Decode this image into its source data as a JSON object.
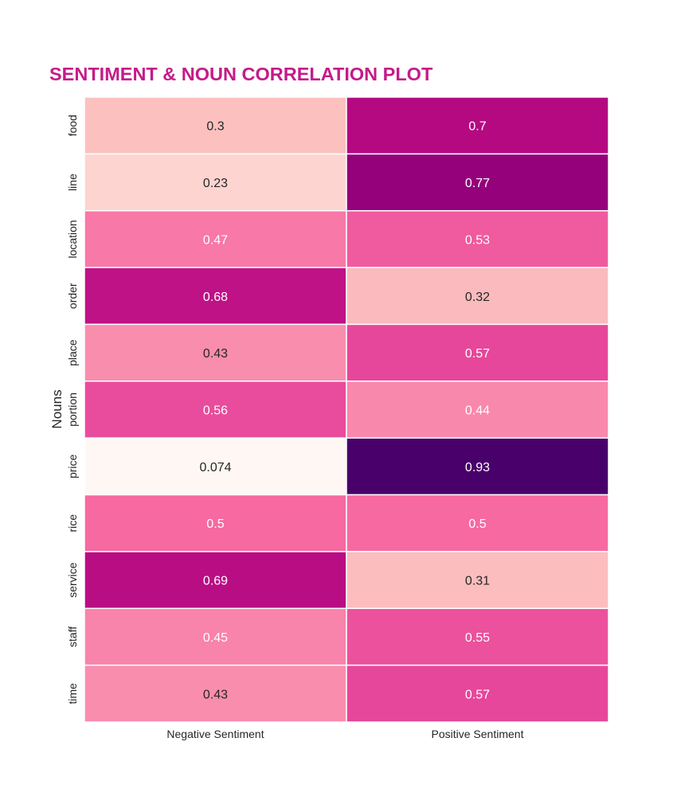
{
  "chart_data": {
    "type": "heatmap",
    "title": "SENTIMENT & NOUN CORRELATION PLOT",
    "title_color": "#c51b8a",
    "xlabel": "",
    "ylabel": "Nouns",
    "colormap": "RdPu",
    "colorbar": false,
    "x_categories": [
      "Negative Sentiment",
      "Positive Sentiment"
    ],
    "y_categories": [
      "food",
      "line",
      "location",
      "order",
      "place",
      "portion",
      "price",
      "rice",
      "service",
      "staff",
      "time"
    ],
    "values": [
      [
        0.3,
        0.7
      ],
      [
        0.23,
        0.77
      ],
      [
        0.47,
        0.53
      ],
      [
        0.68,
        0.32
      ],
      [
        0.43,
        0.57
      ],
      [
        0.56,
        0.44
      ],
      [
        0.074,
        0.93
      ],
      [
        0.5,
        0.5
      ],
      [
        0.69,
        0.31
      ],
      [
        0.45,
        0.55
      ],
      [
        0.43,
        0.57
      ]
    ],
    "value_labels": [
      [
        "0.3",
        "0.7"
      ],
      [
        "0.23",
        "0.77"
      ],
      [
        "0.47",
        "0.53"
      ],
      [
        "0.68",
        "0.32"
      ],
      [
        "0.43",
        "0.57"
      ],
      [
        "0.56",
        "0.44"
      ],
      [
        "0.074",
        "0.93"
      ],
      [
        "0.5",
        "0.5"
      ],
      [
        "0.69",
        "0.31"
      ],
      [
        "0.45",
        "0.55"
      ],
      [
        "0.43",
        "0.57"
      ]
    ],
    "vmin": 0.074,
    "vmax": 0.93
  }
}
